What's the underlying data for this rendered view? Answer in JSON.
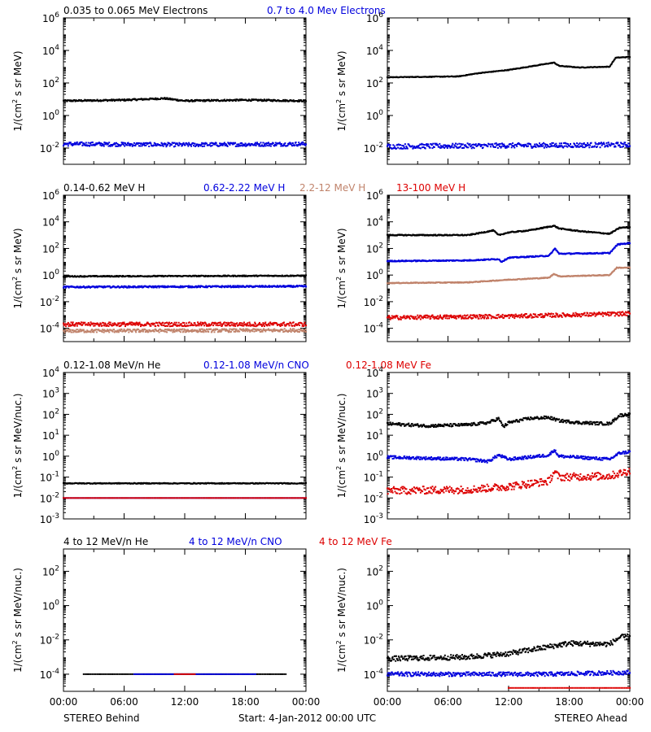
{
  "colors": {
    "black": "#000000",
    "blue": "#0000dd",
    "tan": "#c0836b",
    "red": "#dd0000"
  },
  "footer": {
    "left": "STEREO Behind",
    "center": "Start:  4-Jan-2012 00:00 UTC",
    "right": "STEREO Ahead"
  },
  "chart_data": [
    {
      "id": "electrons-behind",
      "type": "scatter",
      "spacecraft": "STEREO Behind",
      "row_title": [
        {
          "text": "0.035 to 0.065 MeV Electrons",
          "color": "black"
        },
        {
          "text": "0.7 to 4.0 Mev Electrons",
          "color": "blue"
        }
      ],
      "xlabel": "",
      "ylabel": "1/(cm² s sr MeV)",
      "yscale": "log",
      "ylim_exp": [
        -3,
        6
      ],
      "ytick_exps": [
        -2,
        0,
        2,
        4,
        6
      ],
      "xticks": [
        "00:00",
        "06:00",
        "12:00",
        "18:00",
        "00:00"
      ],
      "xlim_hours": [
        0,
        24
      ],
      "series": [
        {
          "color": "black",
          "points_hr_log10": [
            [
              0,
              0.9
            ],
            [
              6,
              0.95
            ],
            [
              10,
              1.05
            ],
            [
              12,
              0.9
            ],
            [
              18,
              0.95
            ],
            [
              24,
              0.9
            ]
          ],
          "scatter": 0.05
        },
        {
          "color": "blue",
          "points_hr_log10": [
            [
              0,
              -1.75
            ],
            [
              12,
              -1.8
            ],
            [
              24,
              -1.75
            ]
          ],
          "scatter": 0.12
        }
      ]
    },
    {
      "id": "electrons-ahead",
      "type": "scatter",
      "spacecraft": "STEREO Ahead",
      "row_title": [],
      "xlabel": "",
      "ylabel": "1/(cm² s sr MeV)",
      "yscale": "log",
      "ylim_exp": [
        -3,
        6
      ],
      "ytick_exps": [
        -2,
        0,
        2,
        4,
        6
      ],
      "xticks": [
        "00:00",
        "06:00",
        "12:00",
        "18:00",
        "00:00"
      ],
      "xlim_hours": [
        0,
        24
      ],
      "series": [
        {
          "color": "black",
          "points_hr_log10": [
            [
              0,
              2.35
            ],
            [
              7,
              2.4
            ],
            [
              9,
              2.6
            ],
            [
              12,
              2.8
            ],
            [
              15,
              3.1
            ],
            [
              16.5,
              3.25
            ],
            [
              17,
              3.05
            ],
            [
              19,
              2.95
            ],
            [
              22,
              3.0
            ],
            [
              22.6,
              3.55
            ],
            [
              24,
              3.6
            ]
          ],
          "scatter": 0.02
        },
        {
          "color": "blue",
          "points_hr_log10": [
            [
              0,
              -1.9
            ],
            [
              12,
              -1.85
            ],
            [
              24,
              -1.8
            ]
          ],
          "scatter": 0.15
        }
      ]
    },
    {
      "id": "protons-behind",
      "type": "scatter",
      "spacecraft": "STEREO Behind",
      "row_title": [
        {
          "text": "0.14-0.62 MeV H",
          "color": "black"
        },
        {
          "text": "0.62-2.22 MeV H",
          "color": "blue"
        },
        {
          "text": "2.2-12 MeV H",
          "color": "tan"
        },
        {
          "text": "13-100 MeV H",
          "color": "red"
        }
      ],
      "xlabel": "",
      "ylabel": "1/(cm² s sr MeV)",
      "yscale": "log",
      "ylim_exp": [
        -5,
        6
      ],
      "ytick_exps": [
        -4,
        -2,
        0,
        2,
        4,
        6
      ],
      "xticks": [
        "00:00",
        "06:00",
        "12:00",
        "18:00",
        "00:00"
      ],
      "xlim_hours": [
        0,
        24
      ],
      "series": [
        {
          "color": "black",
          "points_hr_log10": [
            [
              0,
              -0.1
            ],
            [
              24,
              -0.05
            ]
          ],
          "scatter": 0.04
        },
        {
          "color": "blue",
          "points_hr_log10": [
            [
              0,
              -0.9
            ],
            [
              24,
              -0.85
            ]
          ],
          "scatter": 0.06
        },
        {
          "color": "tan",
          "points_hr_log10": [
            [
              0,
              -4.2
            ],
            [
              24,
              -4.15
            ]
          ],
          "scatter": 0.12
        },
        {
          "color": "red",
          "points_hr_log10": [
            [
              0,
              -3.7
            ],
            [
              24,
              -3.7
            ]
          ],
          "scatter": 0.15
        }
      ]
    },
    {
      "id": "protons-ahead",
      "type": "scatter",
      "spacecraft": "STEREO Ahead",
      "row_title": [],
      "xlabel": "",
      "ylabel": "1/(cm² s sr MeV)",
      "yscale": "log",
      "ylim_exp": [
        -5,
        6
      ],
      "ytick_exps": [
        -4,
        -2,
        0,
        2,
        4,
        6
      ],
      "xticks": [
        "00:00",
        "06:00",
        "12:00",
        "18:00",
        "00:00"
      ],
      "xlim_hours": [
        0,
        24
      ],
      "series": [
        {
          "color": "black",
          "points_hr_log10": [
            [
              0,
              3.0
            ],
            [
              8,
              3.0
            ],
            [
              10.5,
              3.35
            ],
            [
              11,
              3.0
            ],
            [
              12,
              3.2
            ],
            [
              14,
              3.35
            ],
            [
              16.5,
              3.7
            ],
            [
              17,
              3.5
            ],
            [
              19,
              3.3
            ],
            [
              22,
              3.1
            ],
            [
              23,
              3.55
            ],
            [
              24,
              3.6
            ]
          ],
          "scatter": 0.04
        },
        {
          "color": "blue",
          "points_hr_log10": [
            [
              0,
              1.05
            ],
            [
              8,
              1.1
            ],
            [
              11,
              1.2
            ],
            [
              11.3,
              1.0
            ],
            [
              12,
              1.3
            ],
            [
              16,
              1.45
            ],
            [
              16.6,
              2.0
            ],
            [
              17,
              1.6
            ],
            [
              22,
              1.65
            ],
            [
              22.8,
              2.3
            ],
            [
              24,
              2.4
            ]
          ],
          "scatter": 0.04
        },
        {
          "color": "tan",
          "points_hr_log10": [
            [
              0,
              -0.6
            ],
            [
              8,
              -0.55
            ],
            [
              12,
              -0.35
            ],
            [
              16,
              -0.2
            ],
            [
              16.5,
              0.1
            ],
            [
              17,
              -0.1
            ],
            [
              22,
              0.0
            ],
            [
              22.7,
              0.55
            ],
            [
              24,
              0.55
            ]
          ],
          "scatter": 0.03
        },
        {
          "color": "red",
          "points_hr_log10": [
            [
              0,
              -3.2
            ],
            [
              12,
              -3.1
            ],
            [
              18,
              -3.0
            ],
            [
              24,
              -2.9
            ]
          ],
          "scatter": 0.15
        }
      ]
    },
    {
      "id": "heavy-low-behind",
      "type": "scatter",
      "spacecraft": "STEREO Behind",
      "row_title": [
        {
          "text": "0.12-1.08 MeV/n He",
          "color": "black"
        },
        {
          "text": "0.12-1.08 MeV/n CNO",
          "color": "blue"
        },
        {
          "text": "0.12-1.08 MeV Fe",
          "color": "red"
        }
      ],
      "xlabel": "",
      "ylabel": "1/(cm² s sr MeV/nuc.)",
      "yscale": "log",
      "ylim_exp": [
        -3,
        4
      ],
      "ytick_exps": [
        -3,
        -2,
        -1,
        0,
        1,
        2,
        3,
        4
      ],
      "xticks": [
        "00:00",
        "06:00",
        "12:00",
        "18:00",
        "00:00"
      ],
      "xlim_hours": [
        0,
        24
      ],
      "series": [
        {
          "color": "black",
          "points_hr_log10": [
            [
              0,
              -1.3
            ],
            [
              24,
              -1.3
            ]
          ],
          "scatter": 0.02
        },
        {
          "color": "blue",
          "points_hr_log10": [
            [
              0,
              -2.0
            ],
            [
              24,
              -2.0
            ]
          ],
          "scatter": 0.0
        },
        {
          "color": "red",
          "points_hr_log10": [
            [
              0,
              -2.0
            ],
            [
              24,
              -2.0
            ]
          ],
          "scatter": 0.0
        }
      ]
    },
    {
      "id": "heavy-low-ahead",
      "type": "scatter",
      "spacecraft": "STEREO Ahead",
      "row_title": [],
      "xlabel": "",
      "ylabel": "1/(cm² s sr MeV/nuc.)",
      "yscale": "log",
      "ylim_exp": [
        -3,
        4
      ],
      "ytick_exps": [
        -3,
        -2,
        -1,
        0,
        1,
        2,
        3,
        4
      ],
      "xticks": [
        "00:00",
        "06:00",
        "12:00",
        "18:00",
        "00:00"
      ],
      "xlim_hours": [
        0,
        24
      ],
      "series": [
        {
          "color": "black",
          "points_hr_log10": [
            [
              0,
              1.55
            ],
            [
              4,
              1.45
            ],
            [
              8,
              1.5
            ],
            [
              10,
              1.6
            ],
            [
              11,
              1.8
            ],
            [
              11.5,
              1.4
            ],
            [
              12,
              1.6
            ],
            [
              14,
              1.8
            ],
            [
              16,
              1.85
            ],
            [
              17,
              1.7
            ],
            [
              19,
              1.6
            ],
            [
              22,
              1.55
            ],
            [
              23,
              1.95
            ],
            [
              24,
              2.0
            ]
          ],
          "scatter": 0.07
        },
        {
          "color": "blue",
          "points_hr_log10": [
            [
              0,
              -0.05
            ],
            [
              8,
              -0.15
            ],
            [
              10,
              -0.25
            ],
            [
              11,
              0.05
            ],
            [
              12,
              -0.15
            ],
            [
              16,
              0.05
            ],
            [
              16.5,
              0.3
            ],
            [
              17,
              0.0
            ],
            [
              22,
              -0.15
            ],
            [
              23,
              0.15
            ],
            [
              24,
              0.2
            ]
          ],
          "scatter": 0.07
        },
        {
          "color": "red",
          "points_hr_log10": [
            [
              0,
              -1.65
            ],
            [
              8,
              -1.6
            ],
            [
              12,
              -1.45
            ],
            [
              16,
              -1.2
            ],
            [
              16.5,
              -0.75
            ],
            [
              17,
              -1.0
            ],
            [
              22,
              -0.95
            ],
            [
              24,
              -0.7
            ]
          ],
          "scatter": 0.18
        }
      ]
    },
    {
      "id": "heavy-high-behind",
      "type": "scatter",
      "spacecraft": "STEREO Behind",
      "row_title": [
        {
          "text": "4 to 12 MeV/n He",
          "color": "black"
        },
        {
          "text": "4 to 12 MeV/n CNO",
          "color": "blue"
        },
        {
          "text": "4 to 12 MeV Fe",
          "color": "red"
        }
      ],
      "xlabel": "",
      "ylabel": "1/(cm² s sr MeV/nuc.)",
      "yscale": "log",
      "ylim_exp": [
        -5,
        3.3
      ],
      "ytick_exps": [
        -4,
        -2,
        0,
        2
      ],
      "xticks": [
        "00:00",
        "06:00",
        "12:00",
        "18:00",
        "00:00"
      ],
      "xlim_hours": [
        0,
        24
      ],
      "series": [
        {
          "color": "black",
          "points_hr_log10": [
            [
              2,
              -4.0
            ],
            [
              22,
              -4.0
            ]
          ],
          "scatter": 0.0
        },
        {
          "color": "blue",
          "points_hr_log10": [
            [
              7,
              -4.0
            ],
            [
              19,
              -4.0
            ]
          ],
          "scatter": 0.0
        },
        {
          "color": "red",
          "points_hr_log10": [
            [
              11,
              -4.0
            ],
            [
              13,
              -4.0
            ]
          ],
          "scatter": 0.0
        }
      ]
    },
    {
      "id": "heavy-high-ahead",
      "type": "scatter",
      "spacecraft": "STEREO Ahead",
      "row_title": [],
      "xlabel": "",
      "ylabel": "1/(cm² s sr MeV/nuc.)",
      "yscale": "log",
      "ylim_exp": [
        -5,
        3.3
      ],
      "ytick_exps": [
        -4,
        -2,
        0,
        2
      ],
      "xticks": [
        "00:00",
        "06:00",
        "12:00",
        "18:00",
        "00:00"
      ],
      "xlim_hours": [
        0,
        24
      ],
      "series": [
        {
          "color": "black",
          "points_hr_log10": [
            [
              0,
              -3.1
            ],
            [
              8,
              -3.0
            ],
            [
              12,
              -2.8
            ],
            [
              16,
              -2.4
            ],
            [
              18,
              -2.2
            ],
            [
              22,
              -2.25
            ],
            [
              23,
              -1.85
            ],
            [
              24,
              -1.8
            ]
          ],
          "scatter": 0.15
        },
        {
          "color": "blue",
          "points_hr_log10": [
            [
              0,
              -4.0
            ],
            [
              12,
              -4.0
            ],
            [
              16,
              -4.0
            ],
            [
              24,
              -3.9
            ]
          ],
          "scatter": 0.12
        },
        {
          "color": "red",
          "points_hr_log10": [
            [
              12,
              -4.8
            ],
            [
              24,
              -4.8
            ]
          ],
          "scatter": 0.0
        }
      ]
    }
  ]
}
